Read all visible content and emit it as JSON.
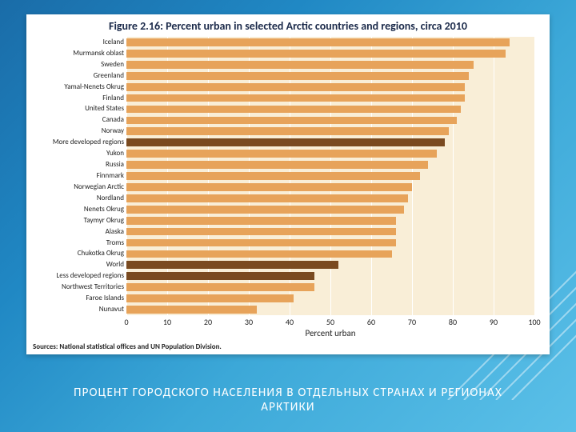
{
  "slide": {
    "caption": "ПРОЦЕНТ ГОРОДСКОГО НАСЕЛЕНИЯ В ОТДЕЛЬНЫХ СТРАНАХ И РЕГИОНАХ АРКТИКИ"
  },
  "chart": {
    "type": "bar-horizontal",
    "title": "Figure 2.16: Percent urban in selected Arctic countries and regions, circa 2010",
    "xlabel": "Percent urban",
    "sources": "Sources: National statistical offices and UN Population Division.",
    "xlim": [
      0,
      100
    ],
    "xtick_step": 10,
    "plot_bg": "#f9eed7",
    "grid_color": "#ffffff",
    "bar_color": "#e7a35a",
    "bar_color_highlight": "#7a4a20",
    "title_color": "#1b2a4a",
    "title_fontsize": 14,
    "ylabel_fontsize": 9,
    "xtick_fontsize": 10,
    "categories": [
      {
        "label": "Iceland",
        "value": 94,
        "highlight": false
      },
      {
        "label": "Murmansk oblast",
        "value": 93,
        "highlight": false
      },
      {
        "label": "Sweden",
        "value": 85,
        "highlight": false
      },
      {
        "label": "Greenland",
        "value": 84,
        "highlight": false
      },
      {
        "label": "Yamal-Nenets Okrug",
        "value": 83,
        "highlight": false
      },
      {
        "label": "Finland",
        "value": 83,
        "highlight": false
      },
      {
        "label": "United States",
        "value": 82,
        "highlight": false
      },
      {
        "label": "Canada",
        "value": 81,
        "highlight": false
      },
      {
        "label": "Norway",
        "value": 79,
        "highlight": false
      },
      {
        "label": "More developed regions",
        "value": 78,
        "highlight": true
      },
      {
        "label": "Yukon",
        "value": 76,
        "highlight": false
      },
      {
        "label": "Russia",
        "value": 74,
        "highlight": false
      },
      {
        "label": "Finnmark",
        "value": 72,
        "highlight": false
      },
      {
        "label": "Norwegian Arctic",
        "value": 70,
        "highlight": false
      },
      {
        "label": "Nordland",
        "value": 69,
        "highlight": false
      },
      {
        "label": "Nenets Okrug",
        "value": 68,
        "highlight": false
      },
      {
        "label": "Taymyr Okrug",
        "value": 66,
        "highlight": false
      },
      {
        "label": "Alaska",
        "value": 66,
        "highlight": false
      },
      {
        "label": "Troms",
        "value": 66,
        "highlight": false
      },
      {
        "label": "Chukotka Okrug",
        "value": 65,
        "highlight": false
      },
      {
        "label": "World",
        "value": 52,
        "highlight": true
      },
      {
        "label": "Less developed regions",
        "value": 46,
        "highlight": true
      },
      {
        "label": "Northwest Territories",
        "value": 46,
        "highlight": false
      },
      {
        "label": "Faroe Islands",
        "value": 41,
        "highlight": false
      },
      {
        "label": "Nunavut",
        "value": 32,
        "highlight": false
      }
    ]
  }
}
